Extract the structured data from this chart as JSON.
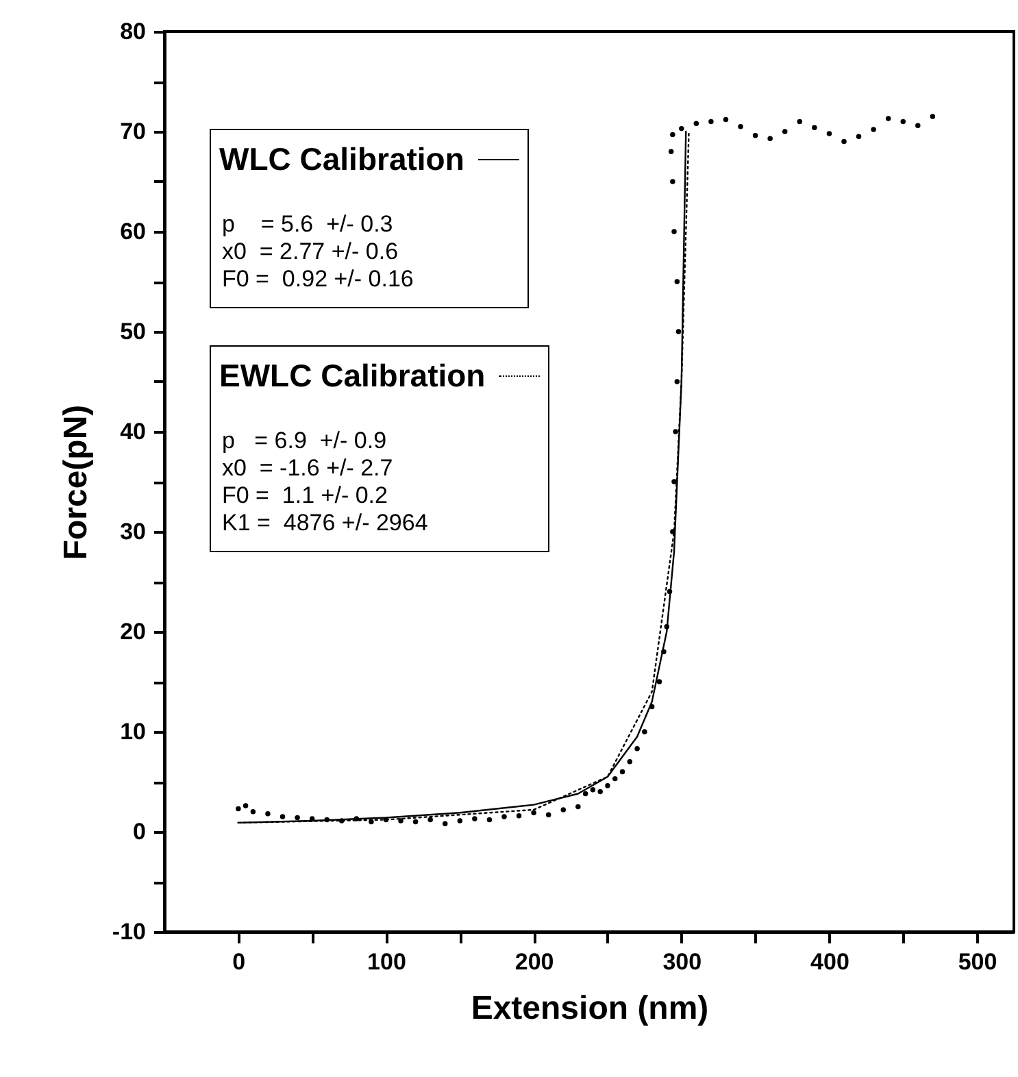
{
  "chart_data": {
    "type": "scatter",
    "xlabel": "Extension (nm)",
    "ylabel": "Force(pN)",
    "xlim": [
      -50,
      525
    ],
    "ylim": [
      -10,
      80
    ],
    "xticks": [
      0,
      {
        "value": 50,
        "label": null
      },
      100,
      {
        "value": 150,
        "label": null
      },
      200,
      {
        "value": 250,
        "label": null
      },
      300,
      {
        "value": 350,
        "label": null
      },
      400,
      {
        "value": 450,
        "label": null
      },
      500
    ],
    "yticks": [
      -10,
      {
        "value": -5,
        "label": null
      },
      0,
      {
        "value": 5,
        "label": null
      },
      10,
      {
        "value": 15,
        "label": null
      },
      20,
      {
        "value": 25,
        "label": null
      },
      30,
      {
        "value": 35,
        "label": null
      },
      40,
      {
        "value": 45,
        "label": null
      },
      50,
      {
        "value": 55,
        "label": null
      },
      60,
      {
        "value": 65,
        "label": null
      },
      70,
      {
        "value": 75,
        "label": null
      },
      80
    ],
    "grid": false,
    "legend": "top left",
    "annotations": [
      "p    = 5.6  +/- 0.3",
      "x0  = 2.77 +/- 0.6",
      "F0 =  0.92 +/- 0.16",
      "p   = 6.9  +/- 0.9",
      "x0  = -1.6 +/- 2.7",
      "F0 =  1.1 +/- 0.2",
      "K1 =  4876 +/- 2964"
    ],
    "series": [
      {
        "type": "scatter",
        "marker": "circle",
        "color": "#000000",
        "x": [
          0,
          5,
          10,
          20,
          30,
          40,
          50,
          60,
          70,
          80,
          90,
          100,
          110,
          120,
          130,
          140,
          150,
          160,
          170,
          180,
          190,
          200,
          210,
          220,
          230,
          235,
          240,
          245,
          250,
          255,
          260,
          265,
          270,
          275,
          280,
          285,
          288,
          290,
          292,
          294,
          295,
          296,
          297,
          298,
          297,
          295,
          294,
          293,
          294,
          300,
          310,
          320,
          330,
          340,
          350,
          360,
          370,
          380,
          390,
          400,
          410,
          420,
          430,
          440,
          450,
          460,
          470
        ],
        "values": [
          2.3,
          2.6,
          2.0,
          1.8,
          1.5,
          1.4,
          1.3,
          1.2,
          1.1,
          1.3,
          1.0,
          1.2,
          1.1,
          1.0,
          1.2,
          0.8,
          1.1,
          1.3,
          1.2,
          1.5,
          1.6,
          1.9,
          1.7,
          2.2,
          2.5,
          3.8,
          4.2,
          4.0,
          4.6,
          5.3,
          6.0,
          7.0,
          8.3,
          10.0,
          12.5,
          15.0,
          18.0,
          20.5,
          24,
          30,
          35,
          40,
          45,
          50,
          55,
          60,
          65,
          68,
          69.7,
          70.3,
          70.8,
          71.0,
          71.2,
          70.5,
          69.6,
          69.3,
          70.0,
          71.0,
          70.4,
          69.8,
          69.0,
          69.5,
          70.2,
          71.3,
          71.0,
          70.6,
          71.5
        ]
      },
      {
        "type": "line",
        "name": "WLC Calibration",
        "color": "#000000",
        "line_style": "solid",
        "x": [
          0,
          50,
          100,
          150,
          200,
          230,
          250,
          270,
          280,
          290,
          295,
          300,
          303
        ],
        "values": [
          0.9,
          1.1,
          1.4,
          1.9,
          2.7,
          3.8,
          5.5,
          9.5,
          13,
          20,
          28,
          45,
          70
        ]
      },
      {
        "type": "line",
        "name": "EWLC Calibration",
        "color": "#000000",
        "line_style": "dotted",
        "x": [
          0,
          100,
          200,
          250,
          280,
          295,
          300,
          305
        ],
        "values": [
          0.9,
          1.2,
          2.2,
          5.5,
          14,
          30,
          45,
          70
        ]
      }
    ]
  }
}
